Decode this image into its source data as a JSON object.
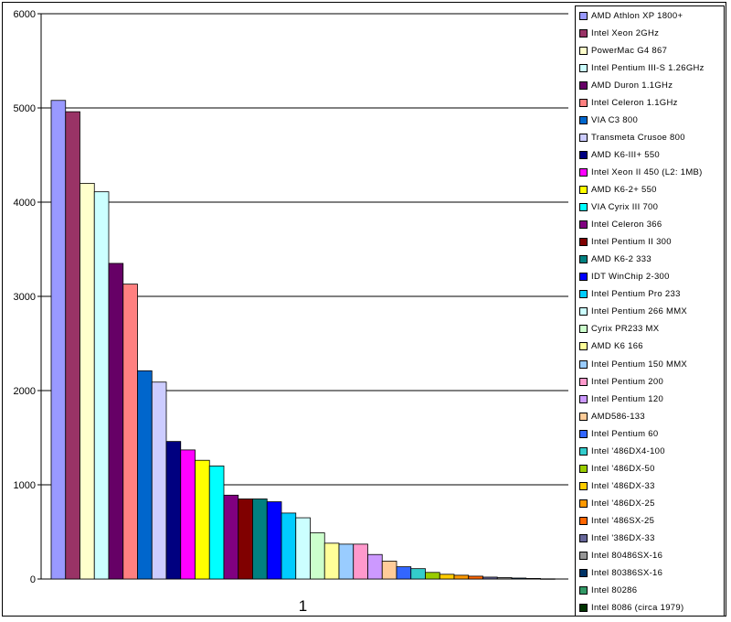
{
  "chart_data": {
    "type": "bar",
    "categories": [
      "1"
    ],
    "ylim": [
      0,
      6000
    ],
    "yticks": [
      0,
      1000,
      2000,
      3000,
      4000,
      5000,
      6000
    ],
    "grid": true,
    "legend_position": "right",
    "series": [
      {
        "name": "AMD Athlon XP 1800+",
        "values": [
          5080
        ],
        "color": "#9999ff"
      },
      {
        "name": "Intel Xeon 2GHz",
        "values": [
          4960
        ],
        "color": "#993366"
      },
      {
        "name": "PowerMac G4 867",
        "values": [
          4200
        ],
        "color": "#ffffcc"
      },
      {
        "name": "Intel Pentium III-S 1.26GHz",
        "values": [
          4110
        ],
        "color": "#ccffff"
      },
      {
        "name": "AMD Duron 1.1GHz",
        "values": [
          3350
        ],
        "color": "#660066"
      },
      {
        "name": "Intel Celeron 1.1GHz",
        "values": [
          3130
        ],
        "color": "#ff8080"
      },
      {
        "name": "VIA C3 800",
        "values": [
          2210
        ],
        "color": "#0066cc"
      },
      {
        "name": "Transmeta Crusoe 800",
        "values": [
          2090
        ],
        "color": "#ccccff"
      },
      {
        "name": "AMD K6-III+ 550",
        "values": [
          1460
        ],
        "color": "#000080"
      },
      {
        "name": "Intel Xeon II 450 (L2: 1MB)",
        "values": [
          1370
        ],
        "color": "#ff00ff"
      },
      {
        "name": "AMD K6-2+ 550",
        "values": [
          1260
        ],
        "color": "#ffff00"
      },
      {
        "name": "VIA Cyrix III 700",
        "values": [
          1200
        ],
        "color": "#00ffff"
      },
      {
        "name": "Intel Celeron 366",
        "values": [
          890
        ],
        "color": "#800080"
      },
      {
        "name": "Intel Pentium II 300",
        "values": [
          850
        ],
        "color": "#800000"
      },
      {
        "name": "AMD K6-2 333",
        "values": [
          850
        ],
        "color": "#008080"
      },
      {
        "name": "IDT WinChip 2-300",
        "values": [
          820
        ],
        "color": "#0000ff"
      },
      {
        "name": "Intel Pentium Pro 233",
        "values": [
          700
        ],
        "color": "#00ccff"
      },
      {
        "name": "Intel Pentium 266 MMX",
        "values": [
          650
        ],
        "color": "#ccffff"
      },
      {
        "name": "Cyrix PR233 MX",
        "values": [
          490
        ],
        "color": "#ccffcc"
      },
      {
        "name": "AMD K6 166",
        "values": [
          380
        ],
        "color": "#ffff99"
      },
      {
        "name": "Intel Pentium 150 MMX",
        "values": [
          370
        ],
        "color": "#99ccff"
      },
      {
        "name": "Intel Pentium 200",
        "values": [
          370
        ],
        "color": "#ff99cc"
      },
      {
        "name": "Intel Pentium 120",
        "values": [
          260
        ],
        "color": "#cc99ff"
      },
      {
        "name": "AMD586-133",
        "values": [
          190
        ],
        "color": "#ffcc99"
      },
      {
        "name": "Intel Pentium 60",
        "values": [
          130
        ],
        "color": "#3366ff"
      },
      {
        "name": "Intel '486DX4-100",
        "values": [
          110
        ],
        "color": "#33cccc"
      },
      {
        "name": "Intel '486DX-50",
        "values": [
          70
        ],
        "color": "#99cc00"
      },
      {
        "name": "Intel '486DX-33",
        "values": [
          50
        ],
        "color": "#ffcc00"
      },
      {
        "name": "Intel '486DX-25",
        "values": [
          40
        ],
        "color": "#ff9900"
      },
      {
        "name": "Intel '486SX-25",
        "values": [
          30
        ],
        "color": "#ff6600"
      },
      {
        "name": "Intel '386DX-33",
        "values": [
          20
        ],
        "color": "#666699"
      },
      {
        "name": "Intel 80486SX-16",
        "values": [
          15
        ],
        "color": "#969696"
      },
      {
        "name": "Intel 80386SX-16",
        "values": [
          10
        ],
        "color": "#003366"
      },
      {
        "name": "Intel 80286",
        "values": [
          6
        ],
        "color": "#339966"
      },
      {
        "name": "Intel 8086 (circa 1979)",
        "values": [
          2
        ],
        "color": "#003300"
      }
    ]
  }
}
